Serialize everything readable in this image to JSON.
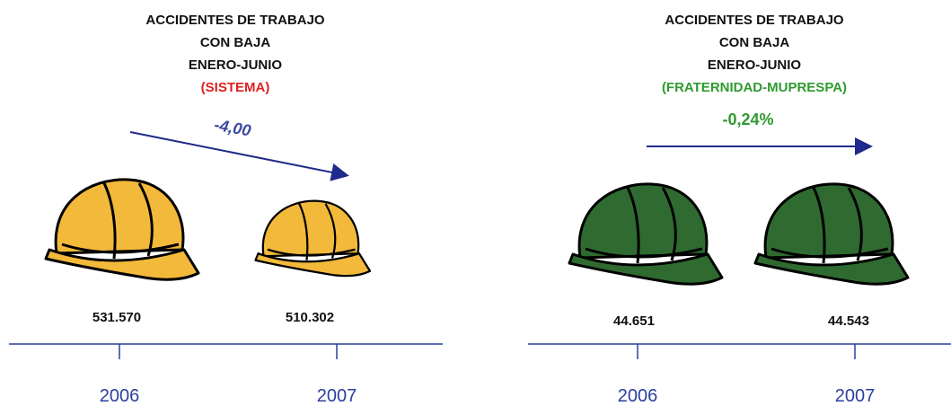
{
  "panels": [
    {
      "title_lines": [
        "ACCIDENTES DE TRABAJO",
        "CON BAJA",
        "ENERO-JUNIO"
      ],
      "subtitle": "(SISTEMA)",
      "change": "-4,00",
      "items": [
        {
          "year": "2006",
          "value": "531.570"
        },
        {
          "year": "2007",
          "value": "510.302"
        }
      ]
    },
    {
      "title_lines": [
        "ACCIDENTES DE TRABAJO",
        "CON BAJA",
        "ENERO-JUNIO"
      ],
      "subtitle": "(FRATERNIDAD-MUPRESPA)",
      "change": "-0,24%",
      "items": [
        {
          "year": "2006",
          "value": "44.651"
        },
        {
          "year": "2007",
          "value": "44.543"
        }
      ]
    }
  ]
}
